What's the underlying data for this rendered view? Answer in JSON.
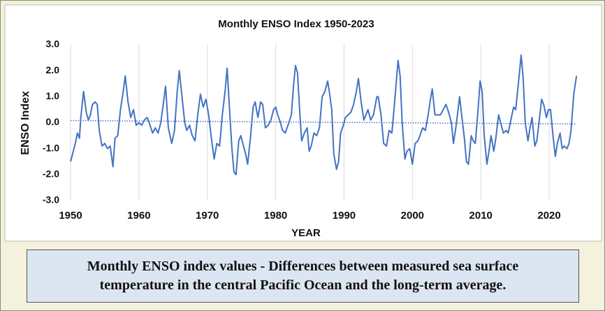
{
  "chart_data": {
    "type": "line",
    "title": "Monthly ENSO Index 1950-2023",
    "y_label": "ENSO Index",
    "x_label": "YEAR",
    "caption": [
      "Monthly ENSO index values - Differences between measured sea surface",
      "temperature in the central Pacific Ocean and the long-term average."
    ],
    "xlim": [
      1950,
      2025
    ],
    "xticks": [
      1950,
      1960,
      1970,
      1980,
      1990,
      2000,
      2010,
      2020
    ],
    "ylim": [
      -3,
      3
    ],
    "yticks": [
      {
        "value": 3,
        "label": "3.0"
      },
      {
        "value": 2,
        "label": "2.0"
      },
      {
        "value": 1,
        "label": "1.0"
      },
      {
        "value": 0,
        "label": "0.0"
      },
      {
        "value": -1,
        "label": "-1.0"
      },
      {
        "value": -2,
        "label": "-2.0"
      },
      {
        "value": -3,
        "label": "-3.0"
      }
    ],
    "grid": "x",
    "x": [
      1950,
      1950.3,
      1950.7,
      1951.0,
      1951.3,
      1951.5,
      1951.9,
      1952.3,
      1952.6,
      1952.9,
      1953.2,
      1953.6,
      1953.9,
      1954.2,
      1954.6,
      1955.0,
      1955.4,
      1955.8,
      1956.2,
      1956.5,
      1956.9,
      1957.3,
      1957.7,
      1958.0,
      1958.4,
      1958.8,
      1959.2,
      1959.6,
      1960.0,
      1960.4,
      1960.8,
      1961.2,
      1961.5,
      1962.0,
      1962.4,
      1962.8,
      1963.2,
      1963.6,
      1963.9,
      1964.3,
      1964.8,
      1965.2,
      1965.6,
      1965.9,
      1966.3,
      1966.7,
      1967.0,
      1967.4,
      1967.8,
      1968.2,
      1968.6,
      1969.0,
      1969.4,
      1969.8,
      1970.2,
      1970.6,
      1971.0,
      1971.4,
      1971.8,
      1972.2,
      1972.6,
      1972.9,
      1973.3,
      1973.6,
      1973.9,
      1974.2,
      1974.6,
      1974.9,
      1975.3,
      1975.6,
      1975.9,
      1976.3,
      1976.7,
      1977.0,
      1977.4,
      1977.8,
      1978.1,
      1978.5,
      1978.9,
      1979.3,
      1979.7,
      1980.0,
      1980.3,
      1980.7,
      1981.0,
      1981.4,
      1981.8,
      1982.3,
      1982.6,
      1982.9,
      1983.2,
      1983.5,
      1983.8,
      1984.2,
      1984.6,
      1984.9,
      1985.2,
      1985.6,
      1986.0,
      1986.4,
      1986.8,
      1987.2,
      1987.6,
      1987.9,
      1988.2,
      1988.5,
      1988.9,
      1989.2,
      1989.5,
      1989.9,
      1990.2,
      1990.6,
      1991.0,
      1991.4,
      1991.8,
      1992.1,
      1992.5,
      1992.9,
      1993.2,
      1993.5,
      1993.9,
      1994.3,
      1994.8,
      1995.0,
      1995.4,
      1995.8,
      1996.2,
      1996.6,
      1997.0,
      1997.4,
      1997.9,
      1998.2,
      1998.5,
      1998.9,
      1999.2,
      1999.6,
      2000.0,
      2000.4,
      2000.8,
      2001.1,
      2001.5,
      2001.9,
      2002.3,
      2002.7,
      2002.9,
      2003.3,
      2003.7,
      2004.1,
      2004.5,
      2004.9,
      2005.3,
      2005.7,
      2006.0,
      2006.4,
      2006.9,
      2007.2,
      2007.6,
      2007.9,
      2008.2,
      2008.6,
      2008.9,
      2009.2,
      2009.6,
      2009.9,
      2010.2,
      2010.5,
      2010.9,
      2011.2,
      2011.5,
      2011.9,
      2012.2,
      2012.6,
      2012.9,
      2013.3,
      2013.7,
      2014.0,
      2014.4,
      2014.8,
      2015.1,
      2015.5,
      2015.9,
      2016.2,
      2016.5,
      2016.9,
      2017.2,
      2017.5,
      2017.9,
      2018.2,
      2018.6,
      2018.9,
      2019.2,
      2019.6,
      2019.9,
      2020.2,
      2020.6,
      2020.9,
      2021.2,
      2021.6,
      2021.9,
      2022.2,
      2022.6,
      2022.9,
      2023.2,
      2023.6,
      2024.0
    ],
    "series": [
      {
        "color": "#4472c4",
        "values": [
          -1.5,
          -1.2,
          -0.8,
          -0.4,
          -0.6,
          0.2,
          1.2,
          0.4,
          0.1,
          0.3,
          0.7,
          0.8,
          0.7,
          -0.3,
          -0.9,
          -0.8,
          -1.0,
          -0.9,
          -1.7,
          -0.6,
          -0.5,
          0.5,
          1.2,
          1.8,
          0.8,
          0.2,
          0.5,
          -0.1,
          0.0,
          -0.1,
          0.1,
          0.2,
          0.0,
          -0.4,
          -0.2,
          -0.4,
          0.0,
          0.8,
          1.4,
          -0.2,
          -0.8,
          -0.3,
          1.2,
          2.0,
          1.0,
          0.0,
          -0.3,
          -0.1,
          -0.5,
          -0.7,
          0.3,
          1.1,
          0.6,
          0.9,
          0.3,
          -0.6,
          -1.4,
          -0.8,
          -0.9,
          0.3,
          1.2,
          2.1,
          0.3,
          -1.0,
          -1.9,
          -2.0,
          -0.7,
          -0.5,
          -0.9,
          -1.2,
          -1.6,
          -0.6,
          0.6,
          0.8,
          0.2,
          0.8,
          0.7,
          -0.2,
          -0.1,
          0.1,
          0.5,
          0.6,
          0.3,
          0.0,
          -0.3,
          -0.4,
          -0.1,
          0.3,
          1.4,
          2.2,
          1.9,
          0.5,
          -0.7,
          -0.4,
          -0.2,
          -1.1,
          -0.9,
          -0.4,
          -0.5,
          -0.2,
          1.0,
          1.2,
          1.6,
          1.1,
          0.5,
          -1.2,
          -1.8,
          -1.5,
          -0.4,
          -0.1,
          0.2,
          0.3,
          0.4,
          0.7,
          1.2,
          1.7,
          0.8,
          0.1,
          0.3,
          0.5,
          0.1,
          0.3,
          1.0,
          1.0,
          0.3,
          -0.8,
          -0.9,
          -0.3,
          -0.4,
          0.8,
          2.4,
          1.8,
          0.0,
          -1.4,
          -1.1,
          -1.0,
          -1.6,
          -0.8,
          -0.7,
          -0.5,
          -0.2,
          -0.3,
          0.3,
          1.0,
          1.3,
          0.3,
          0.3,
          0.3,
          0.5,
          0.7,
          0.4,
          0.0,
          -0.8,
          -0.1,
          1.0,
          0.3,
          -0.6,
          -1.5,
          -1.6,
          -0.5,
          -0.7,
          -0.8,
          0.5,
          1.6,
          1.2,
          -0.5,
          -1.6,
          -1.1,
          -0.5,
          -1.1,
          -0.6,
          0.3,
          0.0,
          -0.4,
          -0.3,
          -0.4,
          0.1,
          0.6,
          0.5,
          1.5,
          2.6,
          1.7,
          0.0,
          -0.7,
          -0.2,
          0.2,
          -0.9,
          -0.7,
          0.2,
          0.9,
          0.7,
          0.2,
          0.5,
          0.5,
          -0.6,
          -1.3,
          -0.8,
          -0.4,
          -1.0,
          -0.9,
          -1.0,
          -0.8,
          -0.3,
          1.1,
          1.8
        ]
      }
    ],
    "trendline": {
      "x": [
        1950,
        2024
      ],
      "values": [
        0.08,
        -0.05
      ],
      "color": "#4472c4",
      "style": "dotted"
    }
  }
}
